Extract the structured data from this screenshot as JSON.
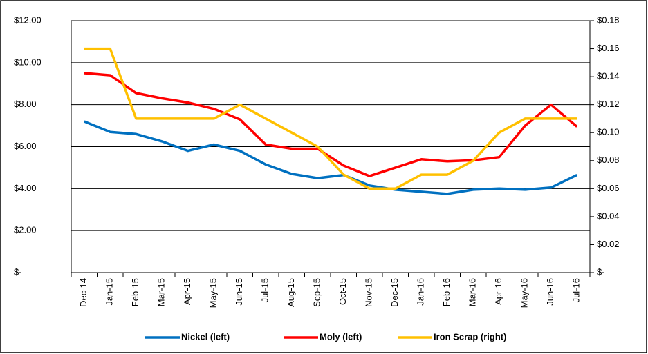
{
  "chart_data": {
    "type": "line",
    "categories": [
      "Dec-14",
      "Jan-15",
      "Feb-15",
      "Mar-15",
      "Apr-15",
      "May-15",
      "Jun-15",
      "Jul-15",
      "Aug-15",
      "Sep-15",
      "Oct-15",
      "Nov-15",
      "Dec-15",
      "Jan-16",
      "Feb-16",
      "Mar-16",
      "Apr-16",
      "May-16",
      "Jun-16",
      "Jul-16"
    ],
    "series": [
      {
        "name": "Nickel (left)",
        "color": "#0070c0",
        "values": [
          7.2,
          6.7,
          6.6,
          6.25,
          5.8,
          6.1,
          5.8,
          5.15,
          4.7,
          4.5,
          4.65,
          4.15,
          3.95,
          3.85,
          3.75,
          3.95,
          4.0,
          3.95,
          4.05,
          4.65
        ]
      },
      {
        "name": "Moly (left)",
        "color": "#ff0000",
        "values": [
          9.5,
          9.4,
          8.55,
          8.3,
          8.1,
          7.8,
          7.3,
          6.1,
          5.9,
          5.9,
          5.1,
          4.6,
          5.0,
          5.4,
          5.3,
          5.35,
          5.5,
          7.0,
          8.0,
          6.95
        ]
      },
      {
        "name": "Iron Scrap (right)",
        "color": "#ffc000",
        "axis": "y2",
        "values": [
          0.16,
          0.16,
          0.11,
          0.11,
          0.11,
          0.11,
          0.12,
          0.11,
          0.1,
          0.09,
          0.07,
          0.06,
          0.06,
          0.07,
          0.07,
          0.08,
          0.1,
          0.11,
          0.11,
          0.11
        ]
      }
    ],
    "ylim": [
      0,
      12
    ],
    "yticks": [
      {
        "value": 0,
        "label": "$-"
      },
      {
        "value": 2,
        "label": "$2.00"
      },
      {
        "value": 4,
        "label": "$4.00"
      },
      {
        "value": 6,
        "label": "$6.00"
      },
      {
        "value": 8,
        "label": "$8.00"
      },
      {
        "value": 10,
        "label": "$10.00"
      },
      {
        "value": 12,
        "label": "$12.00"
      }
    ],
    "y2lim": [
      0,
      0.18
    ],
    "y2ticks": [
      {
        "value": 0,
        "label": "$-"
      },
      {
        "value": 0.02,
        "label": "$0.02"
      },
      {
        "value": 0.04,
        "label": "$0.04"
      },
      {
        "value": 0.06,
        "label": "$0.06"
      },
      {
        "value": 0.08,
        "label": "$0.08"
      },
      {
        "value": 0.1,
        "label": "$0.10"
      },
      {
        "value": 0.12,
        "label": "$0.12"
      },
      {
        "value": 0.14,
        "label": "$0.14"
      },
      {
        "value": 0.16,
        "label": "$0.16"
      },
      {
        "value": 0.18,
        "label": "$0.18"
      }
    ],
    "grid": true,
    "legend": "bottom"
  }
}
